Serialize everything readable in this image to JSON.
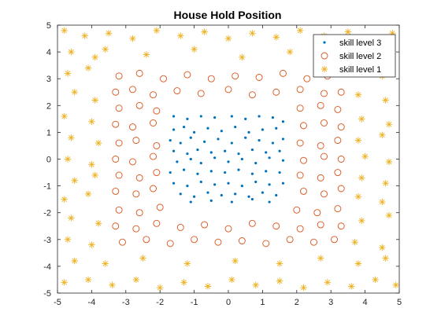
{
  "chart_data": {
    "type": "scatter",
    "title": "House Hold Position",
    "xlabel": "",
    "ylabel": "",
    "xlim": [
      -5,
      5
    ],
    "ylim": [
      -5,
      5
    ],
    "xticks": [
      -5,
      -4,
      -3,
      -2,
      -1,
      0,
      1,
      2,
      3,
      4,
      5
    ],
    "yticks": [
      -5,
      -4,
      -3,
      -2,
      -1,
      0,
      1,
      2,
      3,
      4,
      5
    ],
    "grid": false,
    "legend_position": "top-right",
    "series": [
      {
        "name": "skill level 3",
        "marker": "dot",
        "color": "#0072BD",
        "points": [
          [
            -1.6,
            1.6
          ],
          [
            -1.2,
            1.5
          ],
          [
            -0.8,
            1.6
          ],
          [
            -0.4,
            1.55
          ],
          [
            0.1,
            1.6
          ],
          [
            0.5,
            1.5
          ],
          [
            0.9,
            1.6
          ],
          [
            1.3,
            1.55
          ],
          [
            1.6,
            1.4
          ],
          [
            -1.6,
            1.1
          ],
          [
            -1.3,
            1.2
          ],
          [
            -1.0,
            1.0
          ],
          [
            -0.6,
            1.15
          ],
          [
            -0.2,
            1.05
          ],
          [
            0.2,
            1.2
          ],
          [
            0.6,
            1.0
          ],
          [
            1.0,
            1.1
          ],
          [
            1.4,
            1.15
          ],
          [
            -1.7,
            0.7
          ],
          [
            -1.4,
            0.6
          ],
          [
            -1.1,
            0.8
          ],
          [
            -0.7,
            0.65
          ],
          [
            -0.3,
            0.75
          ],
          [
            0.1,
            0.6
          ],
          [
            0.5,
            0.8
          ],
          [
            0.9,
            0.7
          ],
          [
            1.3,
            0.6
          ],
          [
            1.6,
            0.75
          ],
          [
            -1.6,
            0.3
          ],
          [
            -1.2,
            0.2
          ],
          [
            -0.9,
            0.35
          ],
          [
            -0.5,
            0.25
          ],
          [
            -0.1,
            0.3
          ],
          [
            0.3,
            0.2
          ],
          [
            0.7,
            0.35
          ],
          [
            1.1,
            0.25
          ],
          [
            1.5,
            0.3
          ],
          [
            -1.5,
            -0.1
          ],
          [
            -1.1,
            0.0
          ],
          [
            -0.8,
            -0.15
          ],
          [
            -0.4,
            0.05
          ],
          [
            0.0,
            -0.1
          ],
          [
            0.4,
            0.0
          ],
          [
            0.8,
            -0.15
          ],
          [
            1.2,
            0.05
          ],
          [
            1.6,
            -0.05
          ],
          [
            -1.7,
            -0.5
          ],
          [
            -1.3,
            -0.4
          ],
          [
            -0.9,
            -0.55
          ],
          [
            -0.5,
            -0.45
          ],
          [
            -0.1,
            -0.5
          ],
          [
            0.3,
            -0.4
          ],
          [
            0.7,
            -0.55
          ],
          [
            1.1,
            -0.45
          ],
          [
            1.5,
            -0.5
          ],
          [
            -1.6,
            -0.9
          ],
          [
            -1.2,
            -1.0
          ],
          [
            -0.8,
            -0.85
          ],
          [
            -0.4,
            -0.95
          ],
          [
            0.0,
            -0.9
          ],
          [
            0.4,
            -1.0
          ],
          [
            0.8,
            -0.85
          ],
          [
            1.2,
            -0.95
          ],
          [
            1.6,
            -0.9
          ],
          [
            -1.4,
            -1.3
          ],
          [
            -1.0,
            -1.4
          ],
          [
            -0.6,
            -1.25
          ],
          [
            -0.2,
            -1.35
          ],
          [
            0.2,
            -1.3
          ],
          [
            0.6,
            -1.4
          ],
          [
            1.0,
            -1.25
          ],
          [
            1.4,
            -1.35
          ],
          [
            -1.1,
            -1.6
          ],
          [
            -0.5,
            -1.55
          ],
          [
            0.1,
            -1.6
          ],
          [
            0.7,
            -1.5
          ],
          [
            1.2,
            -1.6
          ]
        ]
      },
      {
        "name": "skill level 2",
        "marker": "circle",
        "color": "#D95319",
        "points": [
          [
            -3.2,
            3.1
          ],
          [
            -2.6,
            3.2
          ],
          [
            -1.9,
            3.0
          ],
          [
            -1.2,
            3.15
          ],
          [
            -0.5,
            3.0
          ],
          [
            0.2,
            3.1
          ],
          [
            0.9,
            3.05
          ],
          [
            1.6,
            3.2
          ],
          [
            2.3,
            3.0
          ],
          [
            2.9,
            3.1
          ],
          [
            -3.3,
            2.5
          ],
          [
            -2.8,
            2.6
          ],
          [
            -2.2,
            2.4
          ],
          [
            -1.5,
            2.55
          ],
          [
            -0.8,
            2.45
          ],
          [
            0.0,
            2.6
          ],
          [
            0.7,
            2.4
          ],
          [
            1.4,
            2.5
          ],
          [
            2.1,
            2.6
          ],
          [
            2.8,
            2.45
          ],
          [
            3.3,
            2.5
          ],
          [
            -3.2,
            1.9
          ],
          [
            -2.6,
            2.0
          ],
          [
            -2.1,
            1.8
          ],
          [
            2.1,
            1.9
          ],
          [
            2.7,
            2.0
          ],
          [
            3.2,
            1.85
          ],
          [
            -3.3,
            1.3
          ],
          [
            -2.8,
            1.2
          ],
          [
            -2.2,
            1.35
          ],
          [
            2.2,
            1.25
          ],
          [
            2.8,
            1.35
          ],
          [
            3.3,
            1.2
          ],
          [
            -3.2,
            0.6
          ],
          [
            -2.7,
            0.7
          ],
          [
            -2.1,
            0.5
          ],
          [
            2.1,
            0.6
          ],
          [
            2.7,
            0.5
          ],
          [
            3.2,
            0.7
          ],
          [
            -3.3,
            0.0
          ],
          [
            -2.8,
            -0.1
          ],
          [
            -2.2,
            0.1
          ],
          [
            2.2,
            -0.05
          ],
          [
            2.8,
            0.1
          ],
          [
            3.3,
            0.0
          ],
          [
            -3.2,
            -0.6
          ],
          [
            -2.6,
            -0.7
          ],
          [
            -2.1,
            -0.5
          ],
          [
            2.1,
            -0.6
          ],
          [
            2.7,
            -0.7
          ],
          [
            3.2,
            -0.5
          ],
          [
            -3.3,
            -1.2
          ],
          [
            -2.7,
            -1.3
          ],
          [
            -2.2,
            -1.1
          ],
          [
            2.2,
            -1.2
          ],
          [
            2.8,
            -1.3
          ],
          [
            3.3,
            -1.1
          ],
          [
            -3.2,
            -1.9
          ],
          [
            -2.6,
            -2.0
          ],
          [
            -2.0,
            -1.8
          ],
          [
            2.0,
            -1.9
          ],
          [
            2.6,
            -2.0
          ],
          [
            3.2,
            -1.85
          ],
          [
            -3.3,
            -2.5
          ],
          [
            -2.7,
            -2.6
          ],
          [
            -2.1,
            -2.4
          ],
          [
            -1.4,
            -2.55
          ],
          [
            -0.7,
            -2.45
          ],
          [
            0.0,
            -2.6
          ],
          [
            0.7,
            -2.4
          ],
          [
            1.4,
            -2.5
          ],
          [
            2.1,
            -2.6
          ],
          [
            2.7,
            -2.45
          ],
          [
            3.3,
            -2.5
          ],
          [
            -3.1,
            -3.1
          ],
          [
            -2.4,
            -3.0
          ],
          [
            -1.7,
            -3.15
          ],
          [
            -1.0,
            -3.0
          ],
          [
            -0.3,
            -3.1
          ],
          [
            0.4,
            -3.05
          ],
          [
            1.1,
            -3.15
          ],
          [
            1.8,
            -3.0
          ],
          [
            2.5,
            -3.1
          ],
          [
            3.1,
            -3.0
          ]
        ]
      },
      {
        "name": "skill level 1",
        "marker": "asterisk",
        "color": "#EDB120",
        "points": [
          [
            -4.8,
            4.8
          ],
          [
            -4.2,
            4.6
          ],
          [
            -3.5,
            4.7
          ],
          [
            -2.8,
            4.5
          ],
          [
            -2.1,
            4.8
          ],
          [
            -1.4,
            4.6
          ],
          [
            -0.7,
            4.75
          ],
          [
            0.0,
            4.5
          ],
          [
            0.7,
            4.7
          ],
          [
            1.4,
            4.55
          ],
          [
            2.1,
            4.8
          ],
          [
            2.8,
            4.6
          ],
          [
            3.5,
            4.75
          ],
          [
            4.2,
            4.5
          ],
          [
            4.8,
            4.7
          ],
          [
            -4.6,
            4.0
          ],
          [
            -3.9,
            3.8
          ],
          [
            -3.6,
            4.1
          ],
          [
            -2.4,
            3.9
          ],
          [
            -1.0,
            4.1
          ],
          [
            0.4,
            3.8
          ],
          [
            1.8,
            4.0
          ],
          [
            3.0,
            3.9
          ],
          [
            3.9,
            4.1
          ],
          [
            4.6,
            3.8
          ],
          [
            -4.7,
            3.2
          ],
          [
            -4.1,
            3.4
          ],
          [
            3.7,
            3.3
          ],
          [
            4.5,
            3.1
          ],
          [
            -4.5,
            2.5
          ],
          [
            -3.9,
            2.2
          ],
          [
            3.8,
            2.4
          ],
          [
            4.6,
            2.2
          ],
          [
            -4.8,
            1.6
          ],
          [
            -4.0,
            1.4
          ],
          [
            3.9,
            1.5
          ],
          [
            4.7,
            1.3
          ],
          [
            -4.6,
            0.8
          ],
          [
            -3.8,
            0.6
          ],
          [
            3.8,
            0.7
          ],
          [
            4.5,
            0.9
          ],
          [
            -4.7,
            0.0
          ],
          [
            -4.0,
            -0.2
          ],
          [
            4.0,
            0.1
          ],
          [
            4.7,
            -0.1
          ],
          [
            -4.5,
            -0.8
          ],
          [
            -3.9,
            -0.6
          ],
          [
            3.9,
            -0.7
          ],
          [
            4.6,
            -0.9
          ],
          [
            -4.8,
            -1.5
          ],
          [
            -4.1,
            -1.3
          ],
          [
            3.8,
            -1.4
          ],
          [
            4.5,
            -1.6
          ],
          [
            -4.6,
            -2.2
          ],
          [
            -3.8,
            -2.4
          ],
          [
            3.9,
            -2.3
          ],
          [
            4.7,
            -2.1
          ],
          [
            -4.7,
            -3.0
          ],
          [
            -4.0,
            -3.2
          ],
          [
            3.7,
            -3.1
          ],
          [
            4.5,
            -3.3
          ],
          [
            -4.5,
            -3.8
          ],
          [
            -3.6,
            -3.9
          ],
          [
            -2.5,
            -3.7
          ],
          [
            -1.2,
            -3.9
          ],
          [
            0.2,
            -3.8
          ],
          [
            1.5,
            -3.9
          ],
          [
            2.7,
            -3.7
          ],
          [
            3.8,
            -3.9
          ],
          [
            4.6,
            -3.7
          ],
          [
            -4.8,
            -4.6
          ],
          [
            -4.1,
            -4.5
          ],
          [
            -3.4,
            -4.7
          ],
          [
            -2.7,
            -4.5
          ],
          [
            -2.0,
            -4.8
          ],
          [
            -1.3,
            -4.6
          ],
          [
            -0.6,
            -4.75
          ],
          [
            0.1,
            -4.5
          ],
          [
            0.8,
            -4.7
          ],
          [
            1.5,
            -4.55
          ],
          [
            2.2,
            -4.8
          ],
          [
            2.9,
            -4.6
          ],
          [
            3.6,
            -4.75
          ],
          [
            4.3,
            -4.5
          ],
          [
            4.9,
            -4.7
          ]
        ]
      }
    ]
  }
}
